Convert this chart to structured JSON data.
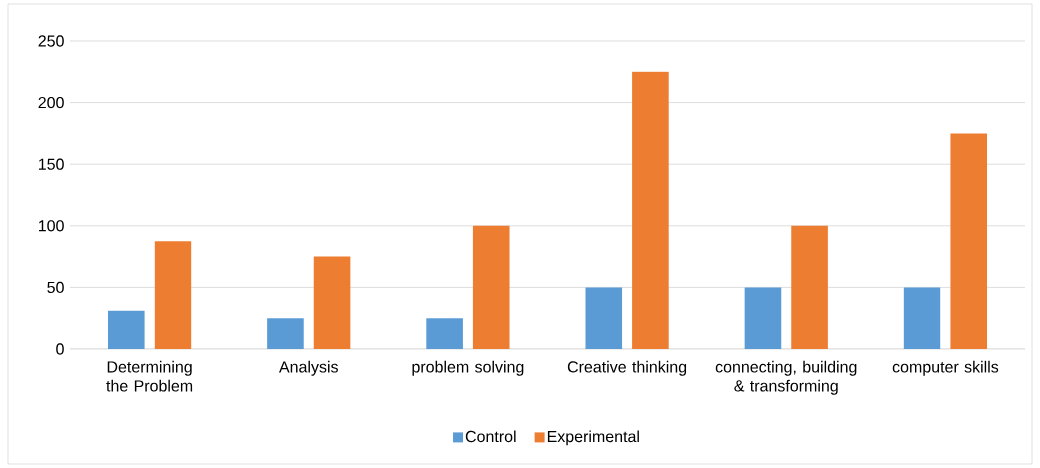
{
  "chart_data": {
    "type": "bar",
    "categories": [
      "Determining the Problem",
      "Analysis",
      "problem solving",
      "Creative thinking",
      "connecting, building & transforming",
      "computer skills"
    ],
    "series": [
      {
        "name": "Control",
        "color": "#5b9bd5",
        "values": [
          31,
          25,
          25,
          50,
          50,
          50
        ]
      },
      {
        "name": "Experimental",
        "color": "#ed7d31",
        "values": [
          87.5,
          75,
          100,
          225,
          100,
          175
        ]
      }
    ],
    "ylim": [
      0,
      250
    ],
    "yticks": [
      0,
      50,
      100,
      150,
      200,
      250
    ],
    "grid": "y",
    "legend": "bottom"
  }
}
